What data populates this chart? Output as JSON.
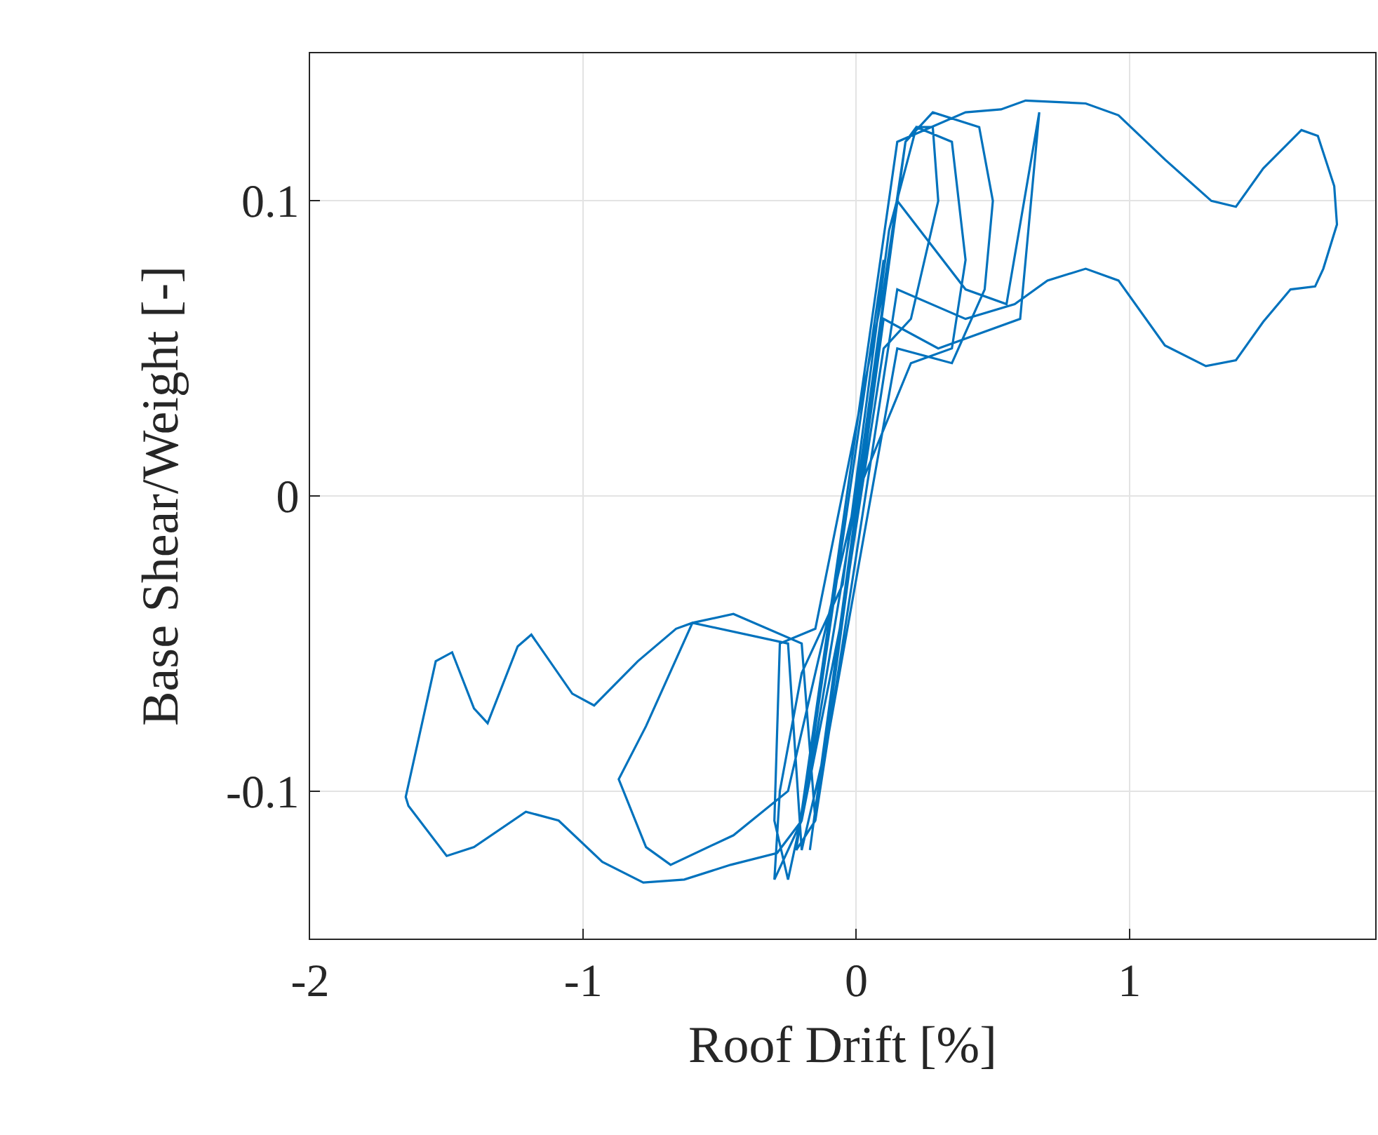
{
  "chart_data": {
    "type": "line",
    "xlabel": "Roof Drift [%]",
    "ylabel": "Base Shear/Weight [-]",
    "xlim": [
      -2,
      1.9
    ],
    "ylim": [
      -0.15,
      0.15
    ],
    "xticks": [
      -2,
      -1,
      0,
      1
    ],
    "yticks": [
      -0.1,
      0,
      0.1
    ],
    "grid": true,
    "marker": "none",
    "line_style": "solid",
    "series": [
      {
        "color": "#0072bd",
        "x": [
          -0.17,
          0.18,
          0.22,
          0.28,
          0.3,
          0.2,
          0.1,
          -0.05,
          -0.2,
          -0.3,
          -0.28,
          -0.2,
          -0.05,
          0.12,
          0.22,
          0.35,
          0.4,
          0.35,
          0.2,
          0,
          -0.18,
          -0.25,
          -0.3,
          -0.28,
          -0.15,
          0.1,
          0.18,
          0.28,
          0.45,
          0.5,
          0.47,
          0.35,
          0.15,
          -0.1,
          -0.2,
          -0.25,
          -0.6,
          -0.77,
          -0.87,
          -0.77,
          -0.68,
          -0.45,
          -0.25,
          0,
          0.15,
          0.4,
          0.55,
          0.67,
          0.6,
          0.3,
          0.1,
          -0.15,
          -0.22,
          0.15,
          0.4,
          0.53,
          0.62,
          0.84,
          0.96,
          1.13,
          1.3,
          1.39,
          1.49,
          1.63,
          1.69,
          1.75,
          1.76,
          1.71,
          1.68,
          1.59,
          1.49,
          1.39,
          1.28,
          1.13,
          0.96,
          0.84,
          0.7,
          0.58,
          0.4,
          0.15,
          -0.15,
          -0.2,
          -0.45,
          -0.6,
          -0.66,
          -0.8,
          -0.96,
          -1.04,
          -1.19,
          -1.24,
          -1.35,
          -1.4,
          -1.48,
          -1.54,
          -1.59,
          -1.65,
          -1.64,
          -1.5,
          -1.4,
          -1.21,
          -1.09,
          -0.93,
          -0.78,
          -0.63,
          -0.46,
          -0.29,
          -0.2,
          0.1
        ],
        "values": [
          -0.12,
          0.12,
          0.125,
          0.125,
          0.1,
          0.06,
          0.05,
          -0.04,
          -0.11,
          -0.13,
          -0.1,
          -0.06,
          -0.03,
          0.09,
          0.125,
          0.12,
          0.08,
          0.05,
          0.045,
          0,
          -0.1,
          -0.13,
          -0.11,
          -0.05,
          -0.045,
          0.07,
          0.12,
          0.13,
          0.125,
          0.1,
          0.07,
          0.045,
          0.05,
          -0.08,
          -0.12,
          -0.05,
          -0.043,
          -0.078,
          -0.096,
          -0.119,
          -0.125,
          -0.115,
          -0.1,
          0,
          0.1,
          0.07,
          0.065,
          0.13,
          0.06,
          0.05,
          0.06,
          -0.11,
          -0.12,
          0.12,
          0.13,
          0.131,
          0.134,
          0.133,
          0.129,
          0.114,
          0.1,
          0.098,
          0.111,
          0.124,
          0.122,
          0.105,
          0.092,
          0.077,
          0.071,
          0.07,
          0.059,
          0.046,
          0.044,
          0.051,
          0.073,
          0.077,
          0.073,
          0.065,
          0.06,
          0.07,
          -0.11,
          -0.05,
          -0.04,
          -0.043,
          -0.045,
          -0.056,
          -0.071,
          -0.067,
          -0.047,
          -0.051,
          -0.077,
          -0.072,
          -0.053,
          -0.056,
          -0.077,
          -0.102,
          -0.105,
          -0.122,
          -0.119,
          -0.107,
          -0.11,
          -0.124,
          -0.131,
          -0.13,
          -0.125,
          -0.121,
          -0.11,
          0.08
        ]
      }
    ]
  }
}
